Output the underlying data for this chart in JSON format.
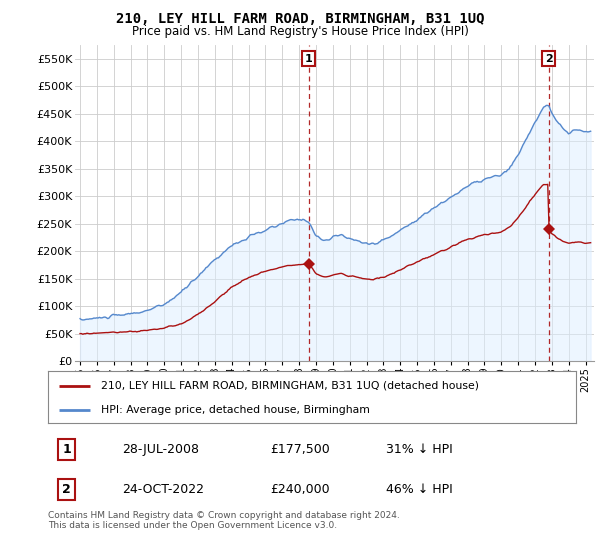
{
  "title": "210, LEY HILL FARM ROAD, BIRMINGHAM, B31 1UQ",
  "subtitle": "Price paid vs. HM Land Registry's House Price Index (HPI)",
  "ytick_values": [
    0,
    50000,
    100000,
    150000,
    200000,
    250000,
    300000,
    350000,
    400000,
    450000,
    500000,
    550000
  ],
  "ylim": [
    0,
    575000
  ],
  "xlim_start": 1994.7,
  "xlim_end": 2025.5,
  "hpi_color": "#5588cc",
  "hpi_fill_color": "#ddeeff",
  "price_color": "#aa1111",
  "marker1_date": 2008.57,
  "marker1_price": 177500,
  "marker2_date": 2022.81,
  "marker2_price": 240000,
  "vline1_x": 2008.57,
  "vline2_x": 2022.81,
  "legend_line1": "210, LEY HILL FARM ROAD, BIRMINGHAM, B31 1UQ (detached house)",
  "legend_line2": "HPI: Average price, detached house, Birmingham",
  "table_row1": [
    "1",
    "28-JUL-2008",
    "£177,500",
    "31% ↓ HPI"
  ],
  "table_row2": [
    "2",
    "24-OCT-2022",
    "£240,000",
    "46% ↓ HPI"
  ],
  "footnote": "Contains HM Land Registry data © Crown copyright and database right 2024.\nThis data is licensed under the Open Government Licence v3.0.",
  "background_color": "#ffffff",
  "grid_color": "#cccccc",
  "xtick_years": [
    1995,
    1996,
    1997,
    1998,
    1999,
    2000,
    2001,
    2002,
    2003,
    2004,
    2005,
    2006,
    2007,
    2008,
    2009,
    2010,
    2011,
    2012,
    2013,
    2014,
    2015,
    2016,
    2017,
    2018,
    2019,
    2020,
    2021,
    2022,
    2023,
    2024,
    2025
  ]
}
